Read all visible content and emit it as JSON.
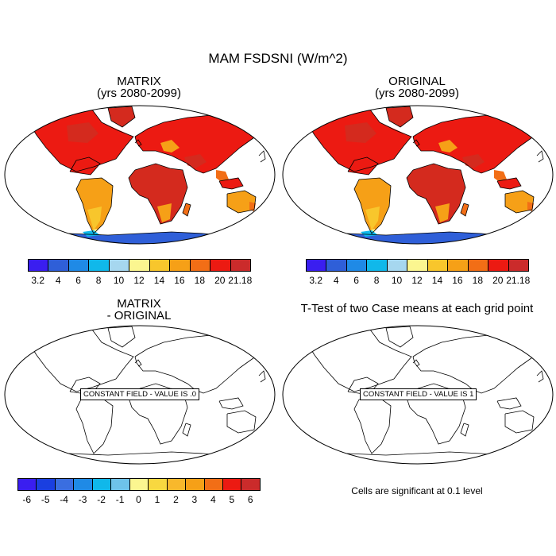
{
  "figure": {
    "main_title": "MAM FSDSNI (W/m^2)",
    "panels": [
      {
        "id": "top-left",
        "title_line1": "MATRIX",
        "title_line2": "(yrs 2080-2099)"
      },
      {
        "id": "top-right",
        "title_line1": "ORIGINAL",
        "title_line2": "(yrs 2080-2099)"
      },
      {
        "id": "bottom-left",
        "title_line1": "MATRIX",
        "title_line2": "- ORIGINAL",
        "field_label": "CONSTANT FIELD - VALUE IS .0"
      },
      {
        "id": "bottom-right",
        "title_line1": "T-Test of two Case means at each grid point",
        "field_label": "CONSTANT FIELD - VALUE IS 1",
        "note": "Cells are significant at 0.1 level"
      }
    ],
    "colorbar_top": {
      "labels": [
        "3.2",
        "4",
        "6",
        "8",
        "10",
        "12",
        "14",
        "16",
        "18",
        "20",
        "21.18"
      ],
      "colors": [
        "#3a1ef0",
        "#2f5fd8",
        "#1f8ae6",
        "#10b8ea",
        "#a6d7ef",
        "#fbf690",
        "#f8c62c",
        "#f6a017",
        "#f26e16",
        "#ec1a12",
        "#cb2b2b"
      ]
    },
    "colorbar_bottom": {
      "labels": [
        "-6",
        "-5",
        "-4",
        "-3",
        "-2",
        "-1",
        "0",
        "1",
        "2",
        "3",
        "4",
        "5",
        "6"
      ],
      "colors": [
        "#3a1ef0",
        "#1a3fe0",
        "#3a6ee0",
        "#1f8ae6",
        "#10b8ea",
        "#6ec3ea",
        "#fbf690",
        "#f8d840",
        "#f8b82c",
        "#f6a017",
        "#f26e16",
        "#ec1a12",
        "#cb2b2b"
      ]
    },
    "map_colors": {
      "land_hot": "#ec1a12",
      "land_darker": "#d42a1e",
      "land_warm": "#f26e16",
      "land_mid": "#f6a017",
      "land_light": "#f8c62c",
      "antarctica": "#2f5fd8",
      "antarctica_edge": "#10b8ea",
      "coast": "#000000"
    }
  }
}
